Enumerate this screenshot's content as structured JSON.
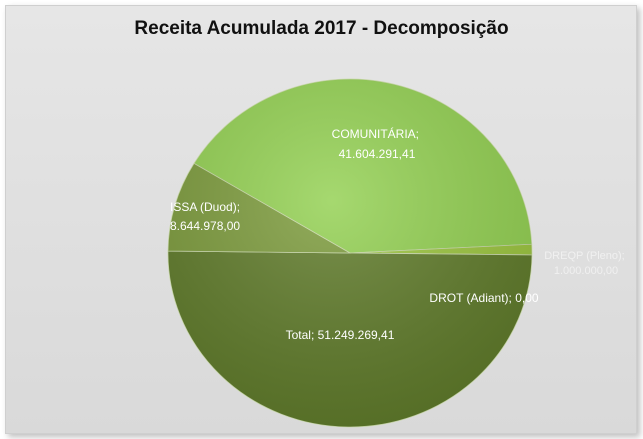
{
  "chart_data": {
    "type": "pie",
    "title": "Receita Acumulada 2017 - Decomposição",
    "slices": [
      {
        "label": "COMUNITÁRIA",
        "value": 41604291.41,
        "display": "COMUNITÁRIA;\n41.604.291,41",
        "color": "#92d050"
      },
      {
        "label": "DREQP (Pleno)",
        "value": 1000000.0,
        "display": "DREQP (Pleno);\n1.000.000,00",
        "color": "#9bc53d"
      },
      {
        "label": "DROT (Adiant)",
        "value": 0.0,
        "display": "DROT (Adiant); 0,00",
        "color": "#7a9a34"
      },
      {
        "label": "Total",
        "value": 51249269.41,
        "display": "Total; 51.249.269,41",
        "color": "#5e7a28"
      },
      {
        "label": "ISSA (Duod)",
        "value": 8644978.0,
        "display": "ISSA (Duod);\n8.644.978,00",
        "color": "#7b9a3a"
      }
    ],
    "legend": "none"
  }
}
